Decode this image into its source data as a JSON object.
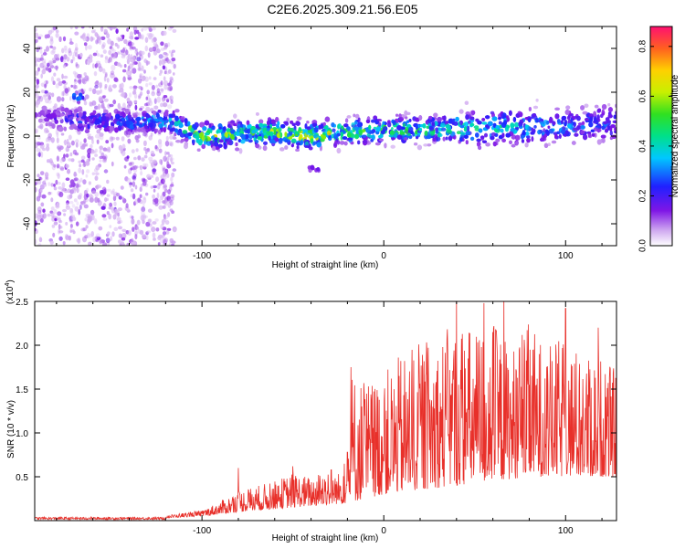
{
  "title": "C2E6.2025.309.21.56.E05",
  "colors": {
    "trace": "#e8302a",
    "axis": "#000000",
    "background": "#ffffff"
  },
  "chart_data": [
    {
      "type": "heatmap",
      "xlabel": "Height of straight line (km)",
      "ylabel": "Frequency (Hz)",
      "xlim": [
        -192,
        128
      ],
      "ylim": [
        -50,
        50
      ],
      "xticks": [
        -100,
        0,
        100
      ],
      "yticks": [
        -40,
        -20,
        0,
        20,
        40
      ],
      "grid": false,
      "colorbar": {
        "label": "Normalized spectral amplitude",
        "range": [
          0.0,
          0.88
        ],
        "ticks": [
          "0.0",
          "0.2",
          "0.4",
          "0.6",
          "0.8"
        ]
      },
      "noise_region_x": [
        -192,
        -115
      ],
      "band_center_hz": [
        [
          -190,
          9
        ],
        [
          -165,
          7
        ],
        [
          -140,
          7
        ],
        [
          -120,
          7
        ],
        [
          -100,
          0
        ],
        [
          -80,
          1
        ],
        [
          -60,
          2
        ],
        [
          -40,
          0
        ],
        [
          -20,
          2
        ],
        [
          0,
          3
        ],
        [
          20,
          3
        ],
        [
          40,
          3
        ],
        [
          60,
          4
        ],
        [
          80,
          4
        ],
        [
          100,
          5
        ],
        [
          128,
          6
        ]
      ],
      "band_peak_amplitude": [
        [
          -190,
          0.1
        ],
        [
          -165,
          0.25
        ],
        [
          -140,
          0.25
        ],
        [
          -120,
          0.35
        ],
        [
          -100,
          0.65
        ],
        [
          -80,
          0.5
        ],
        [
          -60,
          0.6
        ],
        [
          -40,
          0.65
        ],
        [
          -20,
          0.55
        ],
        [
          0,
          0.5
        ],
        [
          20,
          0.5
        ],
        [
          40,
          0.45
        ],
        [
          60,
          0.4
        ],
        [
          80,
          0.35
        ],
        [
          100,
          0.3
        ],
        [
          128,
          0.25
        ]
      ],
      "features": [
        {
          "x": -168,
          "y": 18,
          "amplitude": 0.3
        },
        {
          "x": -38,
          "y": -15,
          "amplitude": 0.15
        },
        {
          "x": -138,
          "y": 5,
          "amplitude": 0.35
        }
      ]
    },
    {
      "type": "line",
      "xlabel": "Height of straight line (km)",
      "ylabel": "SNR (10 * v/v)",
      "y_multiplier_base": "(x10",
      "y_multiplier_exp": "4",
      "y_multiplier_close": ")",
      "xlim": [
        -192,
        128
      ],
      "ylim": [
        0,
        2.5
      ],
      "xticks": [
        -100,
        0,
        100
      ],
      "yticks": [
        "0.5",
        "1.0",
        "1.5",
        "2.0",
        "2.5"
      ],
      "grid": false,
      "envelope": [
        [
          -192,
          0.02
        ],
        [
          -150,
          0.03
        ],
        [
          -120,
          0.06
        ],
        [
          -100,
          0.12
        ],
        [
          -90,
          0.22
        ],
        [
          -80,
          0.35
        ],
        [
          -70,
          0.4
        ],
        [
          -60,
          0.45
        ],
        [
          -50,
          0.55
        ],
        [
          -40,
          0.5
        ],
        [
          -30,
          0.65
        ],
        [
          -25,
          0.55
        ],
        [
          -20,
          0.75
        ],
        [
          -18,
          1.75
        ],
        [
          -10,
          1.6
        ],
        [
          0,
          1.7
        ],
        [
          10,
          1.9
        ],
        [
          20,
          2.05
        ],
        [
          30,
          2.1
        ],
        [
          40,
          2.3
        ],
        [
          50,
          2.2
        ],
        [
          60,
          2.3
        ],
        [
          70,
          2.0
        ],
        [
          80,
          2.25
        ],
        [
          90,
          2.0
        ],
        [
          100,
          2.1
        ],
        [
          110,
          1.9
        ],
        [
          120,
          1.9
        ],
        [
          128,
          1.7
        ]
      ],
      "baseline": [
        [
          -192,
          0.02
        ],
        [
          -120,
          0.03
        ],
        [
          -100,
          0.05
        ],
        [
          -80,
          0.1
        ],
        [
          -50,
          0.15
        ],
        [
          -20,
          0.2
        ],
        [
          0,
          0.3
        ],
        [
          40,
          0.4
        ],
        [
          80,
          0.5
        ],
        [
          128,
          0.5
        ]
      ],
      "peaks": [
        [
          -80,
          0.6
        ],
        [
          -50,
          0.62
        ],
        [
          -20,
          0.78
        ],
        [
          -18,
          1.75
        ],
        [
          40,
          2.55
        ],
        [
          55,
          2.48
        ],
        [
          66,
          2.58
        ],
        [
          100,
          2.42
        ],
        [
          118,
          2.2
        ]
      ]
    }
  ]
}
